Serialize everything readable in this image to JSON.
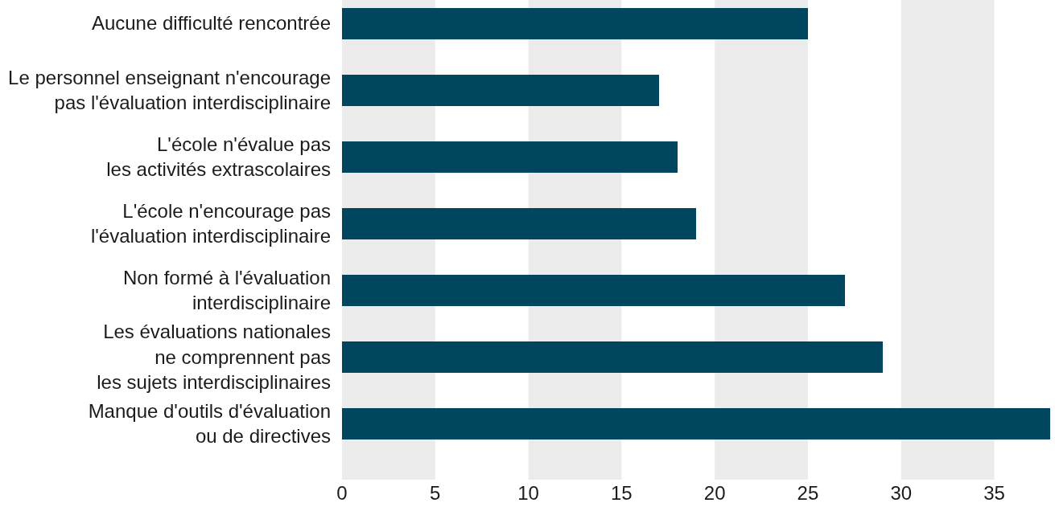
{
  "chart_data": {
    "type": "bar",
    "orientation": "horizontal",
    "categories": [
      "Aucune difficulté rencontrée",
      "Le personnel enseignant n'encourage\npas l'évaluation interdisciplinaire",
      "L'école n'évalue pas\nles activités extrascolaires",
      "L'école n'encourage pas\nl'évaluation interdisciplinaire",
      "Non formé à l'évaluation\ninterdisciplinaire",
      "Les évaluations nationales\nne comprennent pas\nles sujets interdisciplinaires",
      "Manque d'outils d'évaluation\nou de directives"
    ],
    "values": [
      25,
      17,
      18,
      19,
      27,
      29,
      38
    ],
    "color": "#00465f",
    "xlim": [
      0,
      38
    ],
    "xticks": [
      0,
      5,
      10,
      15,
      20,
      25,
      30,
      35
    ],
    "bands": [
      {
        "axis": "x",
        "from": 0,
        "to": 5,
        "color": "#ebebeb"
      },
      {
        "axis": "x",
        "from": 10,
        "to": 15,
        "color": "#ebebeb"
      },
      {
        "axis": "x",
        "from": 20,
        "to": 25,
        "color": "#ebebeb"
      },
      {
        "axis": "x",
        "from": 30,
        "to": 35,
        "color": "#ebebeb"
      }
    ]
  }
}
